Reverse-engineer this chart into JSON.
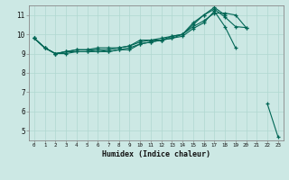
{
  "xlabel": "Humidex (Indice chaleur)",
  "bg_color": "#cce8e4",
  "grid_color": "#b0d8d0",
  "line_color": "#006655",
  "xlim": [
    -0.5,
    23.5
  ],
  "ylim": [
    4.5,
    11.5
  ],
  "xticks": [
    0,
    1,
    2,
    3,
    4,
    5,
    6,
    7,
    8,
    9,
    10,
    11,
    12,
    13,
    14,
    15,
    16,
    17,
    18,
    19,
    20,
    21,
    22,
    23
  ],
  "yticks": [
    5,
    6,
    7,
    8,
    9,
    10,
    11
  ],
  "series": [
    {
      "segments": [
        {
          "x": [
            0,
            1,
            2,
            3,
            4,
            5,
            6,
            7,
            8,
            9,
            10,
            11,
            12,
            13,
            14,
            15,
            16,
            17,
            18,
            19
          ],
          "y": [
            9.8,
            9.3,
            9.0,
            9.0,
            9.1,
            9.1,
            9.1,
            9.1,
            9.2,
            9.2,
            9.5,
            9.6,
            9.7,
            9.8,
            9.9,
            10.3,
            10.6,
            11.2,
            10.4,
            9.3
          ]
        },
        {
          "x": [
            22,
            23
          ],
          "y": [
            6.4,
            4.7
          ]
        }
      ]
    },
    {
      "segments": [
        {
          "x": [
            0,
            1,
            2,
            3,
            4,
            5,
            6,
            7,
            8,
            9,
            10,
            11,
            12,
            13,
            14,
            15,
            16,
            17,
            18,
            19,
            20
          ],
          "y": [
            9.8,
            9.3,
            9.0,
            9.1,
            9.2,
            9.2,
            9.2,
            9.2,
            9.3,
            9.4,
            9.6,
            9.7,
            9.7,
            9.9,
            10.0,
            10.5,
            11.0,
            11.3,
            10.9,
            10.4,
            10.35
          ]
        }
      ]
    },
    {
      "segments": [
        {
          "x": [
            0,
            1,
            2,
            3,
            4,
            5,
            6,
            7,
            8,
            9,
            10,
            11,
            12,
            13,
            14,
            15,
            16,
            17,
            18
          ],
          "y": [
            9.8,
            9.3,
            9.0,
            9.1,
            9.2,
            9.2,
            9.3,
            9.3,
            9.3,
            9.4,
            9.7,
            9.7,
            9.8,
            9.9,
            10.0,
            10.6,
            11.0,
            11.4,
            11.0
          ]
        }
      ]
    },
    {
      "segments": [
        {
          "x": [
            0,
            1,
            2,
            3,
            4,
            5,
            6,
            7,
            8,
            9,
            10,
            11,
            12,
            13,
            14,
            15,
            16,
            17,
            18,
            19,
            20
          ],
          "y": [
            9.8,
            9.3,
            9.0,
            9.1,
            9.1,
            9.1,
            9.2,
            9.1,
            9.2,
            9.3,
            9.5,
            9.6,
            9.7,
            9.8,
            10.0,
            10.4,
            10.7,
            11.1,
            11.1,
            11.0,
            10.35
          ]
        }
      ]
    }
  ]
}
